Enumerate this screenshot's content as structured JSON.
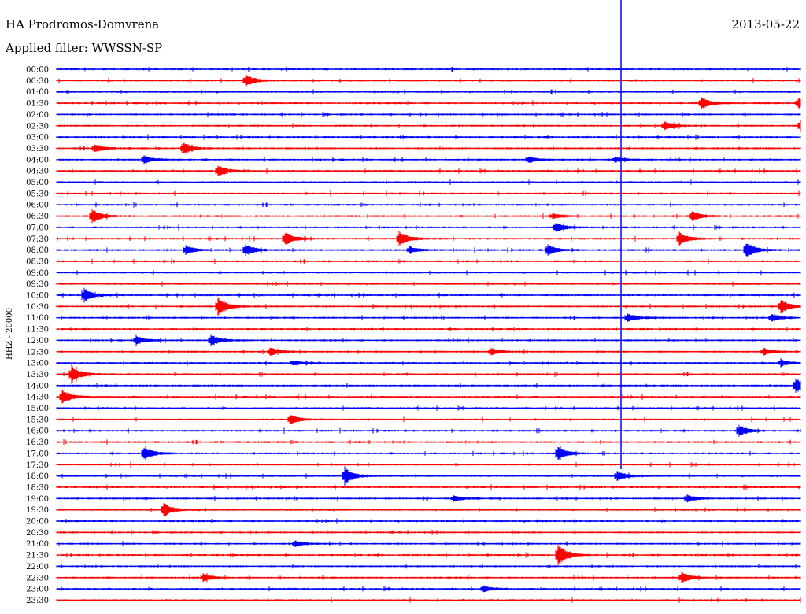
{
  "header": {
    "station": "HA Prodromos-Domvrena",
    "filter": "Applied filter: WWSSN-SP",
    "date": "2013-05-22"
  },
  "axis": {
    "channel_label": "HHZ - 20000"
  },
  "colors": {
    "blue": "#0000ff",
    "red": "#ff0000",
    "background": "#ffffff"
  },
  "chart_data": {
    "type": "line",
    "title": "HA Prodromos-Domvrena",
    "subtitle": "Applied filter: WWSSN-SP",
    "date": "2013-05-22",
    "ylabel": "HHZ - 20000",
    "xrange_minutes": [
      0,
      30
    ],
    "tick_labels": [
      "00:00",
      "00:30",
      "01:00",
      "01:30",
      "02:00",
      "02:30",
      "03:00",
      "03:30",
      "04:00",
      "04:30",
      "05:00",
      "05:30",
      "06:00",
      "06:30",
      "07:00",
      "07:30",
      "08:00",
      "08:30",
      "09:00",
      "09:30",
      "10:00",
      "10:30",
      "11:00",
      "11:30",
      "12:00",
      "12:30",
      "13:00",
      "13:30",
      "14:00",
      "14:30",
      "15:00",
      "15:30",
      "16:00",
      "16:30",
      "17:00",
      "17:30",
      "18:00",
      "18:30",
      "19:00",
      "19:30",
      "20:00",
      "20:30",
      "21:00",
      "21:30",
      "22:00",
      "22:30",
      "23:00",
      "23:30"
    ],
    "row_colors": [
      "blue",
      "red"
    ],
    "events": [
      [
        1,
        7.6,
        8
      ],
      [
        3,
        26.0,
        8
      ],
      [
        3,
        29.9,
        7
      ],
      [
        5,
        30.0,
        9
      ],
      [
        5,
        24.5,
        6
      ],
      [
        7,
        5.1,
        8
      ],
      [
        7,
        1.5,
        6
      ],
      [
        8,
        3.5,
        6
      ],
      [
        8,
        19.0,
        5
      ],
      [
        8,
        22.5,
        4
      ],
      [
        9,
        6.5,
        8
      ],
      [
        13,
        1.4,
        10
      ],
      [
        13,
        20.0,
        4
      ],
      [
        13,
        25.6,
        7
      ],
      [
        14,
        20.1,
        7
      ],
      [
        15,
        9.2,
        9
      ],
      [
        15,
        13.8,
        10
      ],
      [
        15,
        25.1,
        8
      ],
      [
        16,
        5.2,
        6
      ],
      [
        16,
        7.6,
        8
      ],
      [
        16,
        14.2,
        5
      ],
      [
        16,
        19.8,
        7
      ],
      [
        16,
        27.8,
        11
      ],
      [
        20,
        1.1,
        9
      ],
      [
        21,
        6.5,
        12
      ],
      [
        21,
        29.2,
        9
      ],
      [
        22,
        23.0,
        6
      ],
      [
        22,
        28.8,
        6
      ],
      [
        24,
        6.2,
        8
      ],
      [
        24,
        3.2,
        6
      ],
      [
        25,
        8.6,
        6
      ],
      [
        25,
        17.5,
        5
      ],
      [
        25,
        28.5,
        5
      ],
      [
        26,
        9.5,
        4
      ],
      [
        26,
        29.2,
        4
      ],
      [
        27,
        0.6,
        12
      ],
      [
        28,
        29.8,
        10
      ],
      [
        29,
        0.2,
        10
      ],
      [
        31,
        9.4,
        7
      ],
      [
        32,
        27.5,
        8
      ],
      [
        34,
        3.5,
        9
      ],
      [
        34,
        20.2,
        9
      ],
      [
        36,
        11.6,
        12
      ],
      [
        36,
        22.6,
        6
      ],
      [
        38,
        16.0,
        4
      ],
      [
        38,
        25.4,
        5
      ],
      [
        39,
        4.3,
        10
      ],
      [
        42,
        9.6,
        4
      ],
      [
        43,
        20.2,
        15
      ],
      [
        45,
        5.9,
        5
      ],
      [
        45,
        25.2,
        7
      ],
      [
        46,
        17.2,
        4
      ]
    ]
  }
}
